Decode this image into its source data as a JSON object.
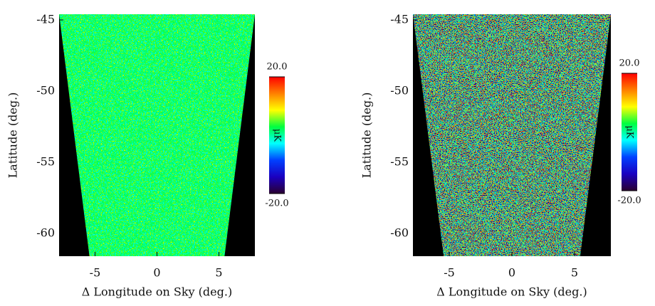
{
  "chart_data": [
    {
      "type": "heatmap",
      "xlabel": "Δ Longitude on Sky (deg.)",
      "ylabel": "Latitude (deg.)",
      "xlim": [
        -7.9,
        7.9
      ],
      "ylim": [
        -61.6,
        -44.6
      ],
      "xticks": [
        -5,
        0,
        5
      ],
      "yticks": [
        -45,
        -50,
        -55,
        -60
      ],
      "colorbar": {
        "label": "μK",
        "zlim": [
          -20,
          20
        ],
        "ticks": [
          {
            "value": 20,
            "label": "20.0"
          },
          {
            "value": -20,
            "label": "-20.0"
          }
        ]
      },
      "colormap": [
        "#2a0030",
        "#1a00c0",
        "#0040ff",
        "#00ffff",
        "#00ff40",
        "#ffff00",
        "#ff8000",
        "#ff0000"
      ]
    },
    {
      "type": "heatmap",
      "xlabel": "Δ Longitude on Sky (deg.)",
      "ylabel": "Latitude (deg.)",
      "xlim": [
        -7.9,
        7.9
      ],
      "ylim": [
        -61.6,
        -44.6
      ],
      "xticks": [
        -5,
        0,
        5
      ],
      "yticks": [
        -45,
        -50,
        -55,
        -60
      ],
      "colorbar": {
        "label": "μK",
        "zlim": [
          -20,
          20
        ],
        "ticks": [
          {
            "value": 20,
            "label": "20.0"
          },
          {
            "value": -20,
            "label": "-20.0"
          }
        ]
      },
      "colormap": [
        "#2a0030",
        "#1a00c0",
        "#0040ff",
        "#00ffff",
        "#00ff40",
        "#ffff00",
        "#ff8000",
        "#ff0000"
      ]
    }
  ]
}
